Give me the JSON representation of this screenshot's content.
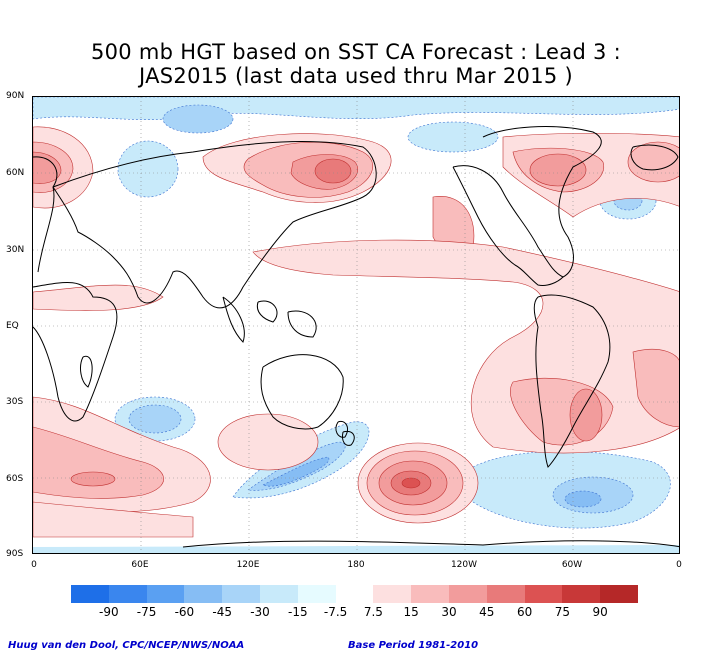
{
  "title_line1": "500 mb HGT based on SST CA Forecast : Lead 3 :",
  "title_line2": "JAS2015 (last data used thru Mar 2015 )",
  "lat_labels": [
    "90N",
    "60N",
    "30N",
    "EQ",
    "30S",
    "60S",
    "90S"
  ],
  "lon_labels": [
    "0",
    "60E",
    "120E",
    "180",
    "120W",
    "60W",
    "0"
  ],
  "colorbar": {
    "labels": [
      "-90",
      "-75",
      "-60",
      "-45",
      "-30",
      "-15",
      "-7.5",
      "7.5",
      "15",
      "30",
      "45",
      "60",
      "75",
      "90"
    ],
    "colors": [
      "#1e6fe8",
      "#3a86ee",
      "#5aa0f2",
      "#86bdf4",
      "#a8d4f8",
      "#c8eafa",
      "#e6fbff",
      "#ffffff",
      "#fde0e0",
      "#f9bcbc",
      "#f29c9c",
      "#e87a7a",
      "#dc5252",
      "#c83838",
      "#b52828"
    ]
  },
  "footer_left": "Huug van den Dool, CPC/NCEP/NWS/NOAA",
  "footer_right": "Base Period 1981-2010",
  "colors": {
    "positive_light": "#fde0e0",
    "positive_mid": "#f9bcbc",
    "positive_strong": "#e87a7a",
    "negative_light": "#c8eafa",
    "negative_mid": "#a8d4f8",
    "negative_strong": "#86bdf4",
    "coastline": "#000000"
  }
}
